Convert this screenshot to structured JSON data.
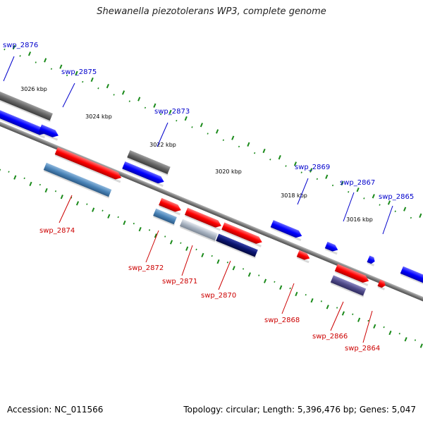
{
  "title": "Shewanella piezotolerans WP3, complete genome",
  "accession": "Accession: NC_011566",
  "topology": "Topology: circular; Length: 5,396,476 bp; Genes: 5,047",
  "colors": {
    "blue": "#0000ff",
    "red": "#ff0000",
    "gray": "#666666",
    "steel": "#4a84b8",
    "lightsteel": "#a9b4c2",
    "navy": "#0a1470",
    "slate": "#4f4a8a",
    "backbone": "#7b7b7b",
    "ticks": "#1a8a1a"
  },
  "scale_labels": [
    "3026 kbp",
    "3024 kbp",
    "3022 kbp",
    "3020 kbp",
    "3018 kbp",
    "3016 kbp"
  ],
  "genes_top": [
    "swp_2876",
    "swp_2875",
    "swp_2873",
    "swp_2869",
    "swp_2867",
    "swp_2865"
  ],
  "genes_bottom": [
    "swp_2874",
    "swp_2872",
    "swp_2871",
    "swp_2870",
    "swp_2868",
    "swp_2866",
    "swp_2864"
  ]
}
